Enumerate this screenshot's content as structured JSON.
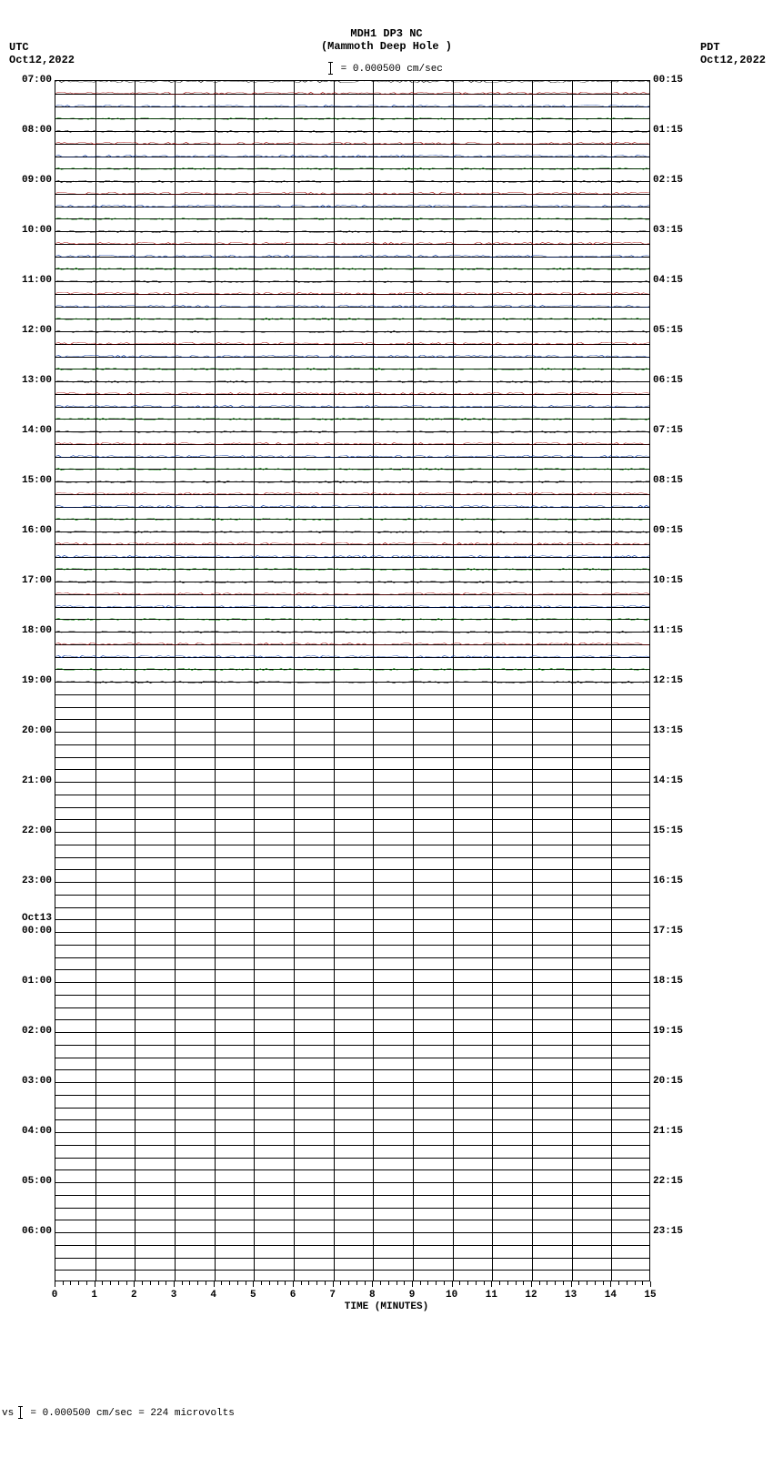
{
  "header": {
    "left_tz": "UTC",
    "left_date": "Oct12,2022",
    "right_tz": "PDT",
    "right_date": "Oct12,2022",
    "station": "MDH1 DP3 NC",
    "station_name": "(Mammoth Deep Hole )",
    "scale_text": " = 0.000500 cm/sec"
  },
  "plot": {
    "type": "helicorder",
    "background_color": "#ffffff",
    "grid_color": "#000000",
    "n_rows": 96,
    "rows_per_hour": 4,
    "x_minutes": 15,
    "x_major_step": 1,
    "x_minor_per_major": 5,
    "trace_colors": [
      "#000000",
      "#aa0000",
      "#0033aa",
      "#008800"
    ],
    "trace_rows_with_data": 49,
    "left_labels": [
      {
        "row": 0,
        "text": "07:00"
      },
      {
        "row": 4,
        "text": "08:00"
      },
      {
        "row": 8,
        "text": "09:00"
      },
      {
        "row": 12,
        "text": "10:00"
      },
      {
        "row": 16,
        "text": "11:00"
      },
      {
        "row": 20,
        "text": "12:00"
      },
      {
        "row": 24,
        "text": "13:00"
      },
      {
        "row": 28,
        "text": "14:00"
      },
      {
        "row": 32,
        "text": "15:00"
      },
      {
        "row": 36,
        "text": "16:00"
      },
      {
        "row": 40,
        "text": "17:00"
      },
      {
        "row": 44,
        "text": "18:00"
      },
      {
        "row": 48,
        "text": "19:00"
      },
      {
        "row": 52,
        "text": "20:00"
      },
      {
        "row": 56,
        "text": "21:00"
      },
      {
        "row": 60,
        "text": "22:00"
      },
      {
        "row": 64,
        "text": "23:00"
      },
      {
        "row": 67,
        "text": "Oct13"
      },
      {
        "row": 68,
        "text": "00:00"
      },
      {
        "row": 72,
        "text": "01:00"
      },
      {
        "row": 76,
        "text": "02:00"
      },
      {
        "row": 80,
        "text": "03:00"
      },
      {
        "row": 84,
        "text": "04:00"
      },
      {
        "row": 88,
        "text": "05:00"
      },
      {
        "row": 92,
        "text": "06:00"
      }
    ],
    "right_labels": [
      {
        "row": 0,
        "text": "00:15"
      },
      {
        "row": 4,
        "text": "01:15"
      },
      {
        "row": 8,
        "text": "02:15"
      },
      {
        "row": 12,
        "text": "03:15"
      },
      {
        "row": 16,
        "text": "04:15"
      },
      {
        "row": 20,
        "text": "05:15"
      },
      {
        "row": 24,
        "text": "06:15"
      },
      {
        "row": 28,
        "text": "07:15"
      },
      {
        "row": 32,
        "text": "08:15"
      },
      {
        "row": 36,
        "text": "09:15"
      },
      {
        "row": 40,
        "text": "10:15"
      },
      {
        "row": 44,
        "text": "11:15"
      },
      {
        "row": 48,
        "text": "12:15"
      },
      {
        "row": 52,
        "text": "13:15"
      },
      {
        "row": 56,
        "text": "14:15"
      },
      {
        "row": 60,
        "text": "15:15"
      },
      {
        "row": 64,
        "text": "16:15"
      },
      {
        "row": 68,
        "text": "17:15"
      },
      {
        "row": 72,
        "text": "18:15"
      },
      {
        "row": 76,
        "text": "19:15"
      },
      {
        "row": 80,
        "text": "20:15"
      },
      {
        "row": 84,
        "text": "21:15"
      },
      {
        "row": 88,
        "text": "22:15"
      },
      {
        "row": 92,
        "text": "23:15"
      }
    ],
    "x_ticks": [
      0,
      1,
      2,
      3,
      4,
      5,
      6,
      7,
      8,
      9,
      10,
      11,
      12,
      13,
      14,
      15
    ],
    "x_axis_title": "TIME (MINUTES)"
  },
  "footer": {
    "prefix": "vs",
    "text": " = 0.000500 cm/sec =    224 microvolts"
  }
}
